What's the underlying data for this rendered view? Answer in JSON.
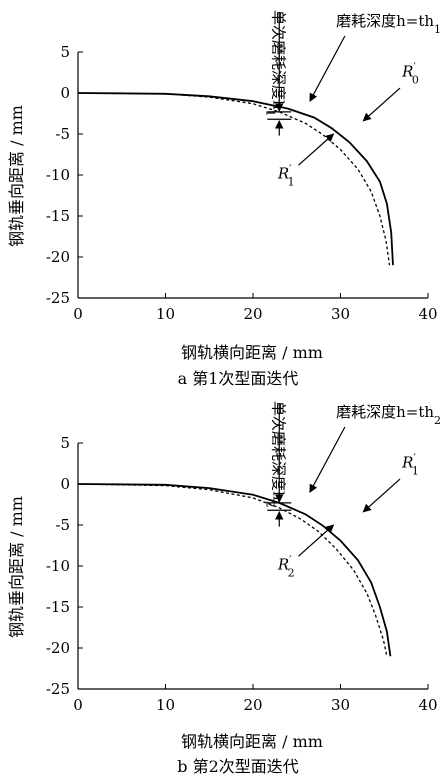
{
  "chart_data": [
    {
      "type": "line",
      "caption": "a 第1次型面迭代",
      "xlabel": "钢轨横向距离 / mm",
      "ylabel": "钢轨垂向距离 / mm",
      "xlim": [
        0,
        40
      ],
      "ylim": [
        -25,
        5
      ],
      "xticks": [
        "0",
        "10",
        "20",
        "30",
        "40"
      ],
      "yticks": [
        "5",
        "0",
        "-5",
        "-10",
        "-15",
        "-20",
        "-25"
      ],
      "annotations": {
        "depth_vertical": "单次磨耗深度h",
        "depth_sub": "1",
        "wear_depth_label": "磨耗深度h=th",
        "wear_depth_sub": "1",
        "solid_label": "R",
        "solid_label_sup": "′",
        "solid_label_sub": "0",
        "dashed_label": "R",
        "dashed_label_sup": "′",
        "dashed_label_sub": "1"
      },
      "series": [
        {
          "name": "R′0",
          "style": "solid",
          "points": [
            [
              0,
              0
            ],
            [
              10,
              -0.1
            ],
            [
              15,
              -0.4
            ],
            [
              20,
              -1.0
            ],
            [
              24,
              -1.9
            ],
            [
              27,
              -3.0
            ],
            [
              29,
              -4.3
            ],
            [
              31,
              -6.0
            ],
            [
              33,
              -8.3
            ],
            [
              34.5,
              -10.8
            ],
            [
              35.3,
              -13.5
            ],
            [
              35.8,
              -17
            ],
            [
              36,
              -21
            ]
          ]
        },
        {
          "name": "R′1",
          "style": "dashed",
          "points": [
            [
              0,
              0
            ],
            [
              10,
              -0.1
            ],
            [
              15,
              -0.5
            ],
            [
              20,
              -1.3
            ],
            [
              23,
              -2.3
            ],
            [
              26,
              -3.7
            ],
            [
              28,
              -5.1
            ],
            [
              30,
              -6.9
            ],
            [
              32,
              -9.3
            ],
            [
              33.5,
              -12.0
            ],
            [
              34.5,
              -15.0
            ],
            [
              35.2,
              -18.0
            ],
            [
              35.6,
              -21
            ]
          ]
        }
      ]
    },
    {
      "type": "line",
      "caption": "b 第2次型面迭代",
      "xlabel": "钢轨横向距离 / mm",
      "ylabel": "钢轨垂向距离 / mm",
      "xlim": [
        0,
        40
      ],
      "ylim": [
        -25,
        5
      ],
      "xticks": [
        "0",
        "10",
        "20",
        "30",
        "40"
      ],
      "yticks": [
        "5",
        "0",
        "-5",
        "-10",
        "-15",
        "-20",
        "-25"
      ],
      "annotations": {
        "depth_vertical": "单次磨耗深度h",
        "depth_sub": "2",
        "wear_depth_label": "磨耗深度h=th",
        "wear_depth_sub": "2",
        "solid_label": "R",
        "solid_label_sup": "′",
        "solid_label_sub": "1",
        "dashed_label": "R",
        "dashed_label_sup": "′",
        "dashed_label_sub": "2"
      },
      "series": [
        {
          "name": "R′1",
          "style": "solid",
          "points": [
            [
              0,
              0
            ],
            [
              10,
              -0.1
            ],
            [
              15,
              -0.5
            ],
            [
              20,
              -1.3
            ],
            [
              23,
              -2.3
            ],
            [
              26,
              -3.7
            ],
            [
              28,
              -5.1
            ],
            [
              30,
              -6.9
            ],
            [
              32,
              -9.3
            ],
            [
              33.5,
              -12.0
            ],
            [
              34.5,
              -15.0
            ],
            [
              35.3,
              -18.0
            ],
            [
              35.7,
              -21
            ]
          ]
        },
        {
          "name": "R′2",
          "style": "dashed",
          "points": [
            [
              0,
              0
            ],
            [
              10,
              -0.2
            ],
            [
              15,
              -0.7
            ],
            [
              20,
              -1.7
            ],
            [
              23,
              -2.9
            ],
            [
              25.5,
              -4.3
            ],
            [
              27.5,
              -5.8
            ],
            [
              29.5,
              -7.9
            ],
            [
              31.5,
              -10.5
            ],
            [
              33,
              -13.3
            ],
            [
              34,
              -16.0
            ],
            [
              34.9,
              -19.0
            ],
            [
              35.3,
              -21
            ]
          ]
        }
      ]
    }
  ]
}
